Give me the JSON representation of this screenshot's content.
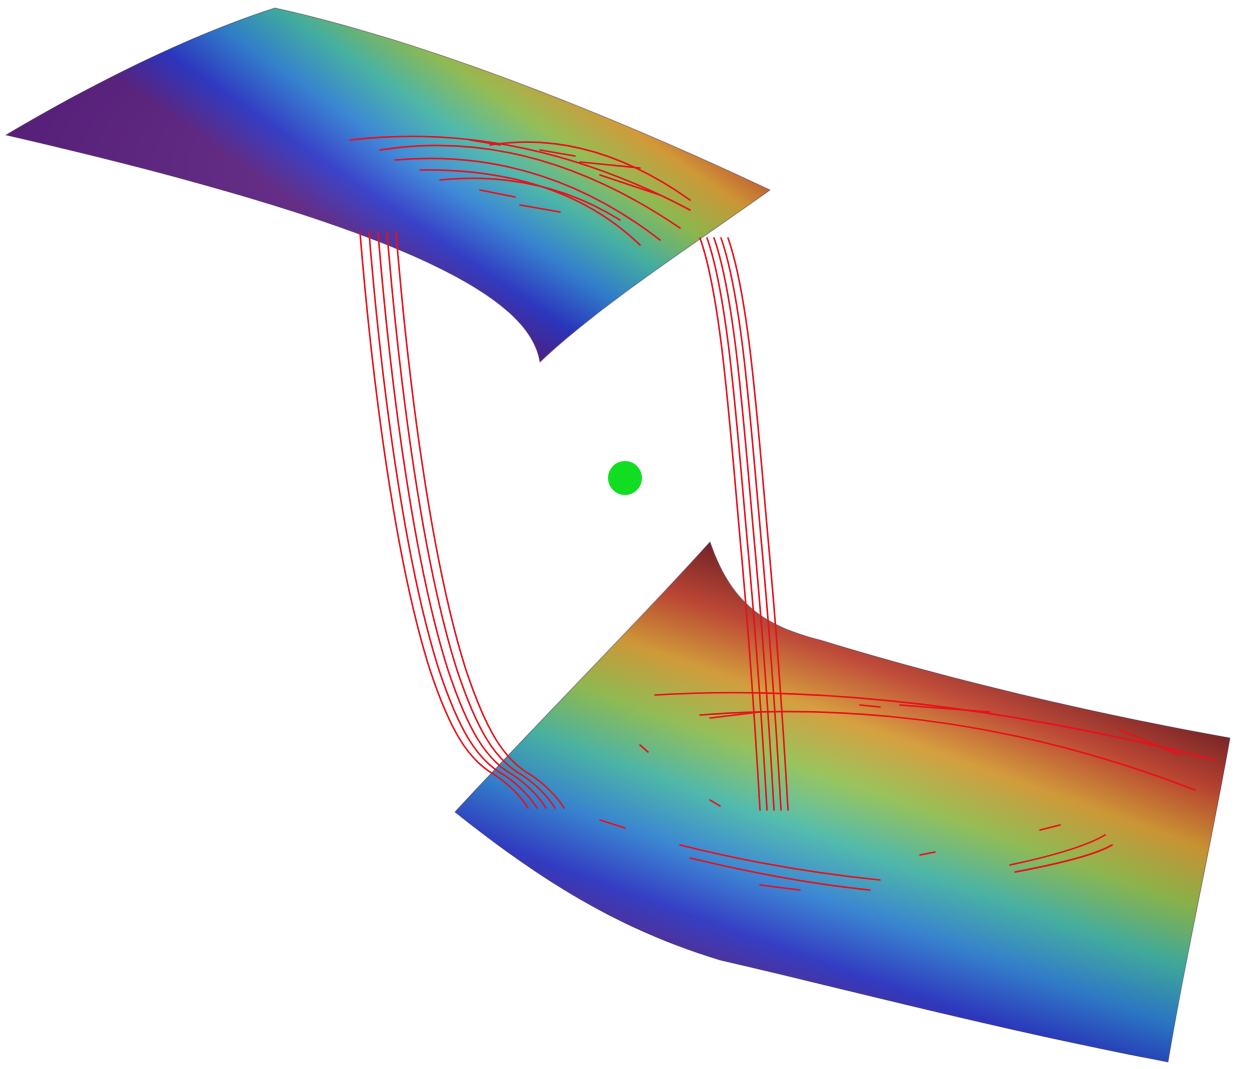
{
  "colors": {
    "background": "#ffffff",
    "trajectory": "#e8101a",
    "equilibrium_point": "#11dd22",
    "surface_gradient": [
      "#5a1c80",
      "#2631c8",
      "#2a7fd6",
      "#3fb6a5",
      "#8fbf4a",
      "#d99a2e",
      "#c4402c",
      "#7a1e22"
    ]
  },
  "elements": {
    "upper_manifold": "surface",
    "lower_manifold": "surface",
    "connecting_trajectories": "orbit-bundle",
    "equilibrium": "fixed-point"
  }
}
